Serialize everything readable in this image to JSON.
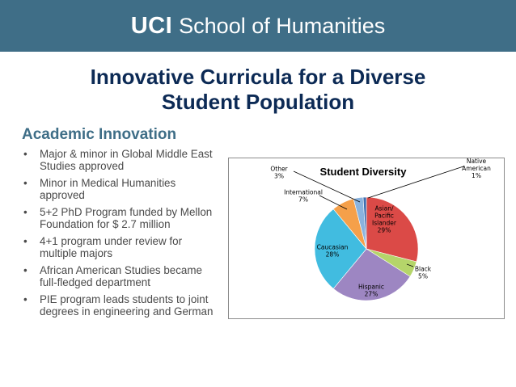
{
  "header": {
    "brand_bold": "UCI",
    "brand_rest": "School of Humanities",
    "background": "#3f6e87"
  },
  "title": {
    "line1": "Innovative Curricula for a Diverse",
    "line2": "Student Population"
  },
  "section": {
    "heading": "Academic Innovation",
    "bullets": [
      "Major & minor in Global Middle East Studies approved",
      "Minor in Medical Humanities approved",
      "5+2 PhD Program funded by Mellon Foundation for $ 2.7 million",
      "4+1 program under review for multiple majors",
      "African American Studies became full-fledged department",
      "PIE program leads students to joint degrees in engineering and German"
    ]
  },
  "chart_data": {
    "type": "pie",
    "title": "Student Diversity",
    "slices": [
      {
        "label": "Asian/ Pacific Islander",
        "display": [
          "Asian/",
          "Pacific",
          "Islander"
        ],
        "pct_label": "29%",
        "value": 29,
        "color": "#db4a47"
      },
      {
        "label": "Black",
        "display": [
          "Black"
        ],
        "pct_label": "5%",
        "value": 5,
        "color": "#b5d56a"
      },
      {
        "label": "Hispanic",
        "display": [
          "Hispanic"
        ],
        "pct_label": "27%",
        "value": 27,
        "color": "#9d86c2"
      },
      {
        "label": "Caucasian",
        "display": [
          "Caucasian"
        ],
        "pct_label": "28%",
        "value": 28,
        "color": "#41bce0"
      },
      {
        "label": "International",
        "display": [
          "International"
        ],
        "pct_label": "7%",
        "value": 7,
        "color": "#f5a04a"
      },
      {
        "label": "Other",
        "display": [
          "Other"
        ],
        "pct_label": "3%",
        "value": 3,
        "color": "#8ab3de"
      },
      {
        "label": "Native American",
        "display": [
          "Native",
          "American"
        ],
        "pct_label": "1%",
        "value": 1,
        "color": "#3f6fb0"
      }
    ],
    "legend": "none"
  }
}
